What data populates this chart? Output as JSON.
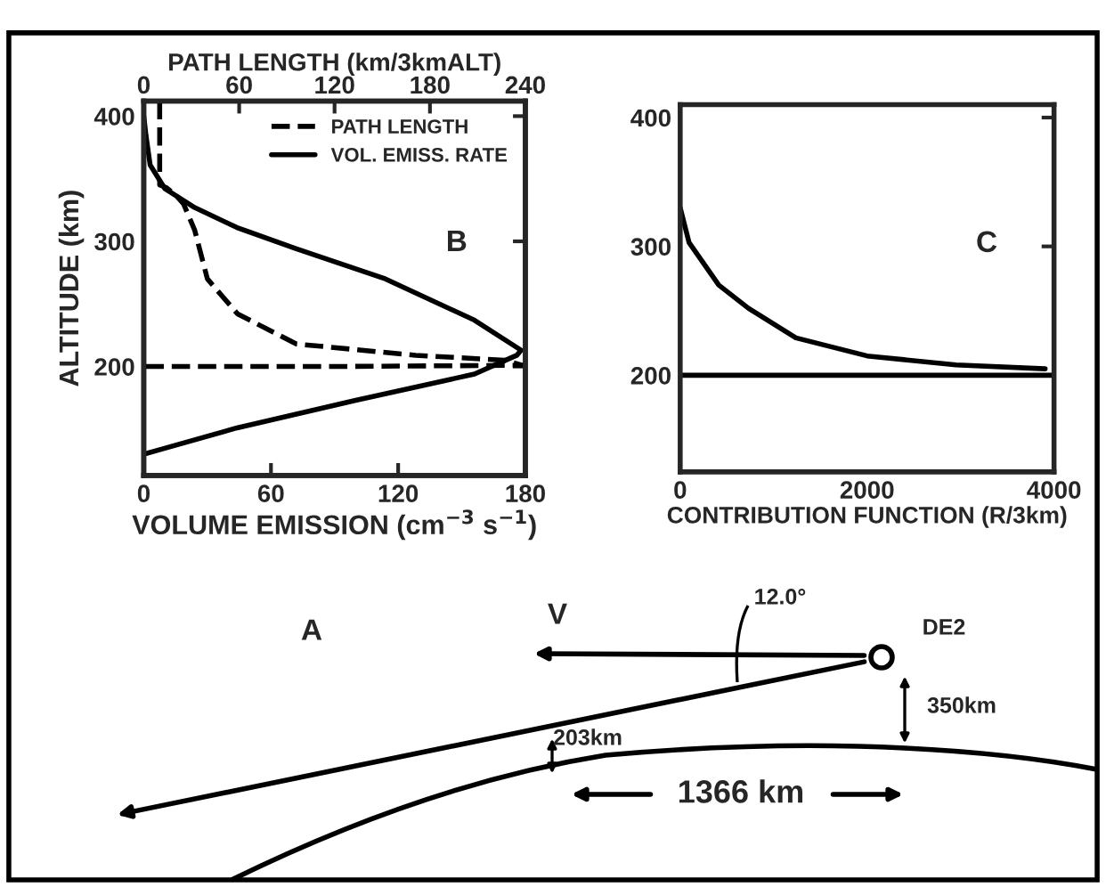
{
  "chart_data": [
    {
      "type": "line",
      "xlabel": "VOLUME EMISSION (cm$^{−3}$ s$^{−1}$)",
      "x2label": "PATH LENGTH (km/3kmALT)",
      "ylabel": "ALTITUDE (km)",
      "xlim": [
        0,
        180
      ],
      "xticks": [
        0,
        60,
        120,
        180
      ],
      "x2lim": [
        0,
        240
      ],
      "x2ticks": [
        0,
        60,
        120,
        180,
        240
      ],
      "ylim": [
        113,
        412
      ],
      "yticks": [
        200,
        300,
        400
      ],
      "legend": "top right",
      "grid": false,
      "annotations": [
        "B"
      ],
      "series": [
        {
          "name": "PATH LENGTH",
          "color": "#000000",
          "line_style": "dashed",
          "axis": "x2",
          "x": [
            10,
            10,
            10,
            14,
            20,
            25,
            32,
            40,
            59,
            96,
            171,
            227,
            238,
            120,
            0
          ],
          "values": [
            412,
            380,
            345,
            343,
            337,
            330,
            309,
            270,
            242,
            218,
            209,
            205,
            201,
            200,
            200
          ]
        },
        {
          "name": "VOL. EMISS. RATE",
          "color": "#000000",
          "line_style": "solid",
          "x": [
            0,
            44,
            100,
            156,
            176,
            178,
            156,
            114,
            72,
            44,
            24,
            10,
            3,
            1,
            0
          ],
          "values": [
            130,
            151,
            173,
            194,
            209,
            213,
            237,
            270,
            294,
            311,
            327,
            342,
            361,
            385,
            400
          ]
        }
      ]
    },
    {
      "type": "line",
      "xlabel": "CONTRIBUTION FUNCTION (R/3km)",
      "xlim": [
        0,
        4000
      ],
      "xticks": [
        0,
        2000,
        4000
      ],
      "ylim": [
        125,
        410
      ],
      "yticks": [
        200,
        300,
        400
      ],
      "grid": false,
      "annotations": [
        "C"
      ],
      "series": [
        {
          "color": "#000000",
          "line_style": "solid",
          "x": [
            0,
            95,
            413,
            730,
            1238,
            2000,
            2952,
            3905
          ],
          "values": [
            330,
            303,
            270,
            252,
            229,
            215,
            208,
            205
          ]
        },
        {
          "color": "#000000",
          "line_style": "solid",
          "x": [
            0,
            4000
          ],
          "values": [
            200,
            200
          ]
        }
      ]
    },
    {
      "type": "other",
      "annotations": [
        "A",
        "V",
        "12.0°",
        "DE2",
        "350km",
        "203km",
        "1366 km"
      ]
    }
  ]
}
